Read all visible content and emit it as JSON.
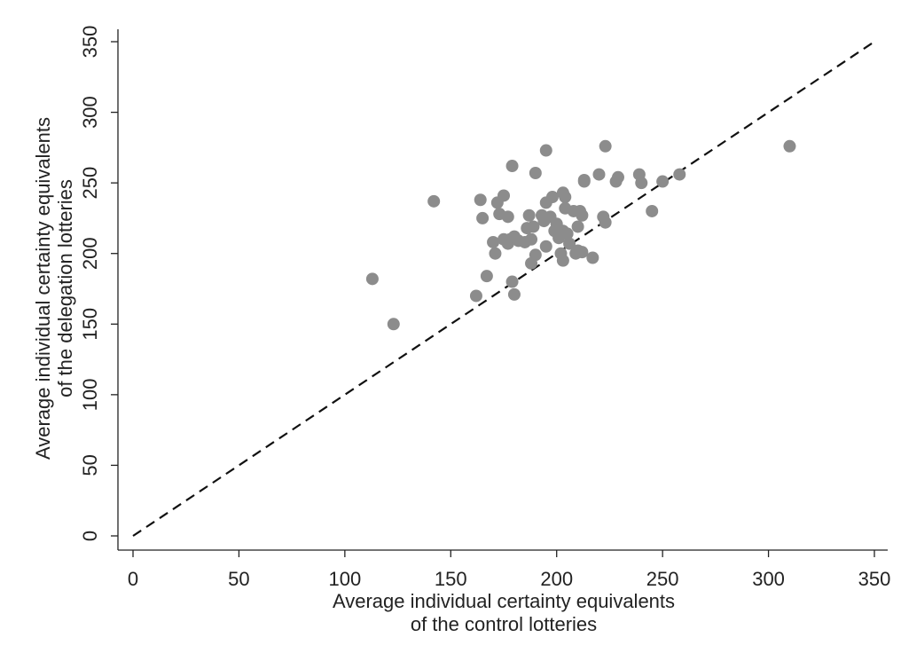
{
  "chart_data": {
    "type": "scatter",
    "title": "",
    "xlabel": [
      "Average individual certainty equivalents",
      "of the control lotteries"
    ],
    "ylabel": [
      "Average individual certainty equivalents",
      "of the delegation lotteries"
    ],
    "xlim": [
      0,
      350
    ],
    "ylim": [
      0,
      350
    ],
    "xticks": [
      "0",
      "50",
      "100",
      "150",
      "200",
      "250",
      "300",
      "350"
    ],
    "yticks": [
      "0",
      "50",
      "100",
      "150",
      "200",
      "250",
      "300",
      "350"
    ],
    "grid": false,
    "reference_line": {
      "style": "dashed",
      "from": [
        0,
        0
      ],
      "to": [
        350,
        350
      ]
    },
    "point_color": "#8c8c8c",
    "points": [
      {
        "x": 113,
        "y": 182
      },
      {
        "x": 123,
        "y": 150
      },
      {
        "x": 142,
        "y": 237
      },
      {
        "x": 162,
        "y": 170
      },
      {
        "x": 164,
        "y": 238
      },
      {
        "x": 165,
        "y": 225
      },
      {
        "x": 167,
        "y": 184
      },
      {
        "x": 170,
        "y": 208
      },
      {
        "x": 171,
        "y": 200
      },
      {
        "x": 172,
        "y": 236
      },
      {
        "x": 173,
        "y": 228
      },
      {
        "x": 175,
        "y": 210
      },
      {
        "x": 175,
        "y": 241
      },
      {
        "x": 177,
        "y": 226
      },
      {
        "x": 177,
        "y": 207
      },
      {
        "x": 178,
        "y": 210
      },
      {
        "x": 179,
        "y": 262
      },
      {
        "x": 179,
        "y": 180
      },
      {
        "x": 180,
        "y": 171
      },
      {
        "x": 180,
        "y": 212
      },
      {
        "x": 182,
        "y": 209
      },
      {
        "x": 185,
        "y": 208
      },
      {
        "x": 186,
        "y": 218
      },
      {
        "x": 187,
        "y": 227
      },
      {
        "x": 188,
        "y": 193
      },
      {
        "x": 188,
        "y": 210
      },
      {
        "x": 189,
        "y": 219
      },
      {
        "x": 190,
        "y": 257
      },
      {
        "x": 190,
        "y": 199
      },
      {
        "x": 193,
        "y": 227
      },
      {
        "x": 194,
        "y": 223
      },
      {
        "x": 195,
        "y": 236
      },
      {
        "x": 195,
        "y": 273
      },
      {
        "x": 195,
        "y": 205
      },
      {
        "x": 197,
        "y": 226
      },
      {
        "x": 198,
        "y": 240
      },
      {
        "x": 199,
        "y": 216
      },
      {
        "x": 200,
        "y": 221
      },
      {
        "x": 201,
        "y": 211
      },
      {
        "x": 202,
        "y": 200
      },
      {
        "x": 203,
        "y": 243
      },
      {
        "x": 203,
        "y": 216
      },
      {
        "x": 203,
        "y": 195
      },
      {
        "x": 204,
        "y": 232
      },
      {
        "x": 204,
        "y": 240
      },
      {
        "x": 205,
        "y": 214
      },
      {
        "x": 206,
        "y": 207
      },
      {
        "x": 208,
        "y": 230
      },
      {
        "x": 209,
        "y": 200
      },
      {
        "x": 210,
        "y": 219
      },
      {
        "x": 210,
        "y": 202
      },
      {
        "x": 211,
        "y": 230
      },
      {
        "x": 212,
        "y": 227
      },
      {
        "x": 212,
        "y": 201
      },
      {
        "x": 213,
        "y": 251
      },
      {
        "x": 213,
        "y": 252
      },
      {
        "x": 217,
        "y": 197
      },
      {
        "x": 220,
        "y": 256
      },
      {
        "x": 222,
        "y": 226
      },
      {
        "x": 223,
        "y": 222
      },
      {
        "x": 223,
        "y": 276
      },
      {
        "x": 228,
        "y": 251
      },
      {
        "x": 229,
        "y": 254
      },
      {
        "x": 239,
        "y": 256
      },
      {
        "x": 240,
        "y": 250
      },
      {
        "x": 245,
        "y": 230
      },
      {
        "x": 250,
        "y": 251
      },
      {
        "x": 258,
        "y": 256
      },
      {
        "x": 310,
        "y": 276
      }
    ]
  }
}
